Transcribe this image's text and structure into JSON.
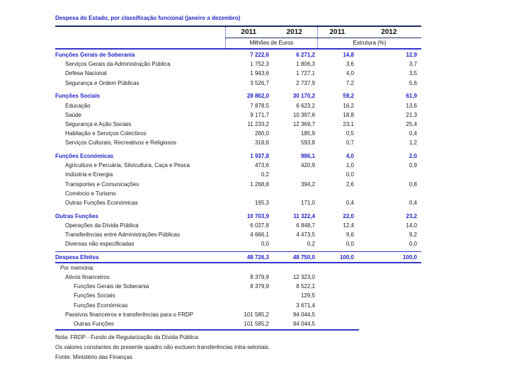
{
  "title": "Despesa do Estado, por classificação funcional (janeiro a dezembro)",
  "header": {
    "years_meur": [
      "2011",
      "2012"
    ],
    "years_pct": [
      "2011",
      "2012"
    ],
    "group1_label": "Milhões de Euros",
    "group2_label": "Estrutura (%)"
  },
  "colors": {
    "accent_blue_text": "#2323c8",
    "line_blue": "#3434cc",
    "line_dark": "#1f2d69"
  },
  "table": {
    "rows": [
      {
        "label": "Funções Gerais de Soberania",
        "v2011": "7 222,6",
        "v2012": "6 271,2",
        "p2011": "14,8",
        "p2012": "12,9",
        "type": "section"
      },
      {
        "label": "Serviços Gerais da Administração Pública",
        "v2011": "1 752,3",
        "v2012": "1 806,3",
        "p2011": "3,6",
        "p2012": "3,7",
        "type": "item"
      },
      {
        "label": "Defesa Nacional",
        "v2011": "1 943,6",
        "v2012": "1 727,1",
        "p2011": "4,0",
        "p2012": "3,5",
        "type": "item"
      },
      {
        "label": "Segurança e Ordem Públicas",
        "v2011": "3 526,7",
        "v2012": "2 737,9",
        "p2011": "7,2",
        "p2012": "5,6",
        "type": "item"
      },
      {
        "label": "Funções Sociais",
        "v2011": "28 862,0",
        "v2012": "30 170,2",
        "p2011": "59,2",
        "p2012": "61,9",
        "type": "section",
        "sep": true
      },
      {
        "label": "Educação",
        "v2011": "7 878,5",
        "v2012": "6 623,2",
        "p2011": "16,2",
        "p2012": "13,6",
        "type": "item"
      },
      {
        "label": "Saúde",
        "v2011": "9 171,7",
        "v2012": "10 397,6",
        "p2011": "18,8",
        "p2012": "21,3",
        "type": "item"
      },
      {
        "label": "Segurança e Ação Sociais",
        "v2011": "11 233,2",
        "v2012": "12 369,7",
        "p2011": "23,1",
        "p2012": "25,4",
        "type": "item"
      },
      {
        "label": "Habitação e Serviços Colectivos",
        "v2011": "260,0",
        "v2012": "185,9",
        "p2011": "0,5",
        "p2012": "0,4",
        "type": "item"
      },
      {
        "label": "Serviços Culturais, Recreativos e Religiosos",
        "v2011": "318,6",
        "v2012": "593,8",
        "p2011": "0,7",
        "p2012": "1,2",
        "type": "item"
      },
      {
        "label": "Funções Económicas",
        "v2011": "1 937,8",
        "v2012": "986,1",
        "p2011": "4,0",
        "p2012": "2,0",
        "type": "section",
        "sep": true
      },
      {
        "label": "Agricultura e Pecuária, Silvicultura, Caça e Pesca",
        "v2011": "473,6",
        "v2012": "420,9",
        "p2011": "1,0",
        "p2012": "0,9",
        "type": "item"
      },
      {
        "label": "Indústria e Energia",
        "v2011": "0,2",
        "v2012": "",
        "p2011": "0,0",
        "p2012": "",
        "type": "item"
      },
      {
        "label": "Transportes e Comunicações",
        "v2011": "1 268,8",
        "v2012": "394,2",
        "p2011": "2,6",
        "p2012": "0,8",
        "type": "item"
      },
      {
        "label": "Comércio e Turismo",
        "v2011": "",
        "v2012": "",
        "p2011": "",
        "p2012": "",
        "type": "item"
      },
      {
        "label": "Outras Funções Económicas",
        "v2011": "195,3",
        "v2012": "171,0",
        "p2011": "0,4",
        "p2012": "0,4",
        "type": "item"
      },
      {
        "label": "Outras Funções",
        "v2011": "10 703,9",
        "v2012": "11 322,4",
        "p2011": "22,0",
        "p2012": "23,2",
        "type": "section",
        "sep": true
      },
      {
        "label": "Operações da Dívida Pública",
        "v2011": "6 037,8",
        "v2012": "6 848,7",
        "p2011": "12,4",
        "p2012": "14,0",
        "type": "item"
      },
      {
        "label": "Transferências entre Administrações Públicas",
        "v2011": "4 666,1",
        "v2012": "4 473,5",
        "p2011": "9,6",
        "p2012": "9,2",
        "type": "item"
      },
      {
        "label": "Diversas não especificadas",
        "v2011": "0,0",
        "v2012": "0,2",
        "p2011": "0,0",
        "p2012": "0,0",
        "type": "item"
      },
      {
        "label": "Despesa Efetiva",
        "v2011": "48 726,3",
        "v2012": "48 750,0",
        "p2011": "100,0",
        "p2012": "100,0",
        "type": "total"
      },
      {
        "label": "Por memória:",
        "v2011": "",
        "v2012": "",
        "p2011": "",
        "p2012": "",
        "type": "memo"
      },
      {
        "label": "Ativos financeiros",
        "v2011": "8 379,9",
        "v2012": "12 323,0",
        "p2011": "",
        "p2012": "",
        "type": "item"
      },
      {
        "label": "Funções Gerais de Soberania",
        "v2011": "8 379,9",
        "v2012": "8 522,1",
        "p2011": "",
        "p2012": "",
        "type": "item2"
      },
      {
        "label": "Funções Sociais",
        "v2011": "",
        "v2012": "129,5",
        "p2011": "",
        "p2012": "",
        "type": "item2"
      },
      {
        "label": "Funções Económicas",
        "v2011": "",
        "v2012": "3 671,4",
        "p2011": "",
        "p2012": "",
        "type": "item2"
      },
      {
        "label": "Passivos financeiros e transferências para o FRDP",
        "v2011": "101 585,2",
        "v2012": "94 044,5",
        "p2011": "",
        "p2012": "",
        "type": "item"
      },
      {
        "label": "Outras Funções",
        "v2011": "101 585,2",
        "v2012": "94 044,5",
        "p2011": "",
        "p2012": "",
        "type": "item2"
      }
    ]
  },
  "footnotes": [
    "Nota: FRDP - Fundo de Regularização da Dívida Pública",
    "Os valores constantes do presente quadro não excluem transferências intra-setoriais.",
    "Fonte: Ministério das Finanças"
  ]
}
